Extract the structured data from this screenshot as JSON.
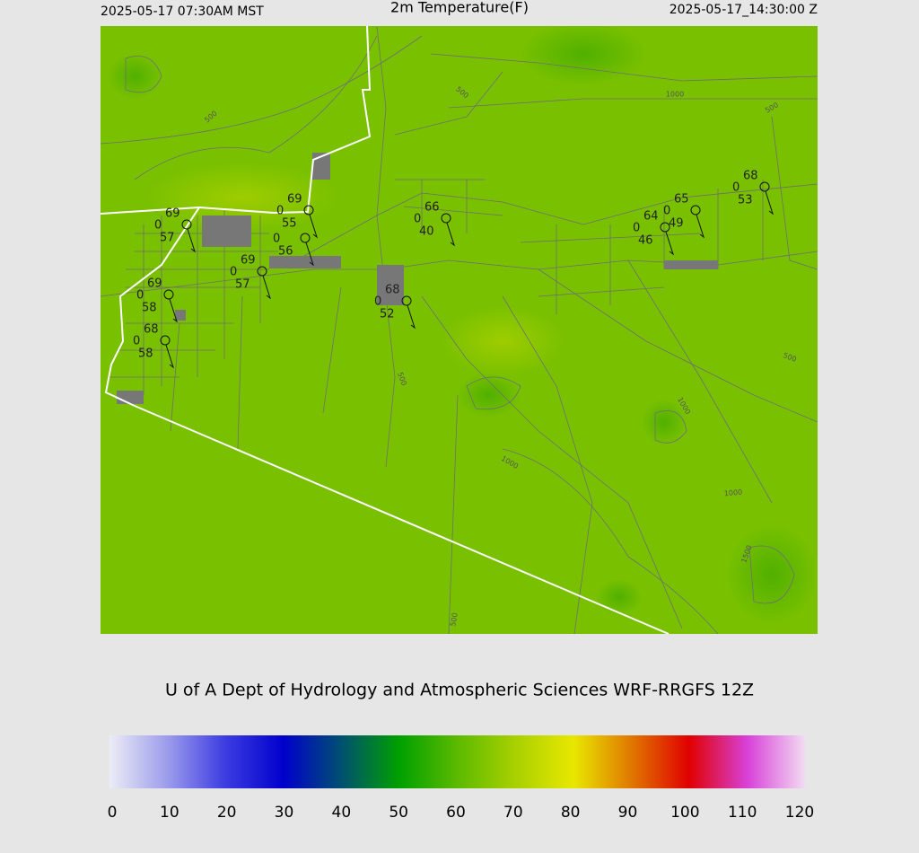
{
  "header": {
    "local_time": "2025-05-17 07:30AM MST",
    "title": "2m Temperature(F)",
    "utc_time": "2025-05-17_14:30:00 Z"
  },
  "stations": [
    {
      "temperature": 69,
      "code": 0,
      "dewpoint": 57
    },
    {
      "temperature": 69,
      "code": 0,
      "dewpoint": 55
    },
    {
      "code": 0,
      "dewpoint": 56
    },
    {
      "temperature": 69,
      "code": 0,
      "dewpoint": 57
    },
    {
      "temperature": 69,
      "code": 0,
      "dewpoint": 58
    },
    {
      "temperature": 68,
      "code": 0,
      "dewpoint": 58
    },
    {
      "temperature": 68,
      "code": 0,
      "dewpoint": 52
    },
    {
      "temperature": 66,
      "code": 0,
      "dewpoint": 40
    },
    {
      "temperature": 64,
      "code": 0,
      "dewpoint": 46
    },
    {
      "temperature": 65,
      "code": 0,
      "dewpoint": 49
    },
    {
      "temperature": 68,
      "code": 0,
      "dewpoint": 53
    }
  ],
  "contour_labels": [
    500,
    500,
    1000,
    500,
    500,
    500,
    1000,
    1000,
    1000,
    1500,
    500
  ],
  "credit": "U of A Dept of Hydrology and Atmospheric Sciences WRF-RRGFS 12Z",
  "colorbar": {
    "ticks": [
      0,
      10,
      20,
      30,
      40,
      50,
      60,
      70,
      80,
      90,
      100,
      110,
      120
    ],
    "colors": [
      "#ececf6",
      "#9c9cec",
      "#3c3ce2",
      "#0000cc",
      "#005070",
      "#00a000",
      "#5cba00",
      "#a8d000",
      "#e8e800",
      "#e07800",
      "#e00000",
      "#d840d8",
      "#f2dcf2"
    ]
  }
}
